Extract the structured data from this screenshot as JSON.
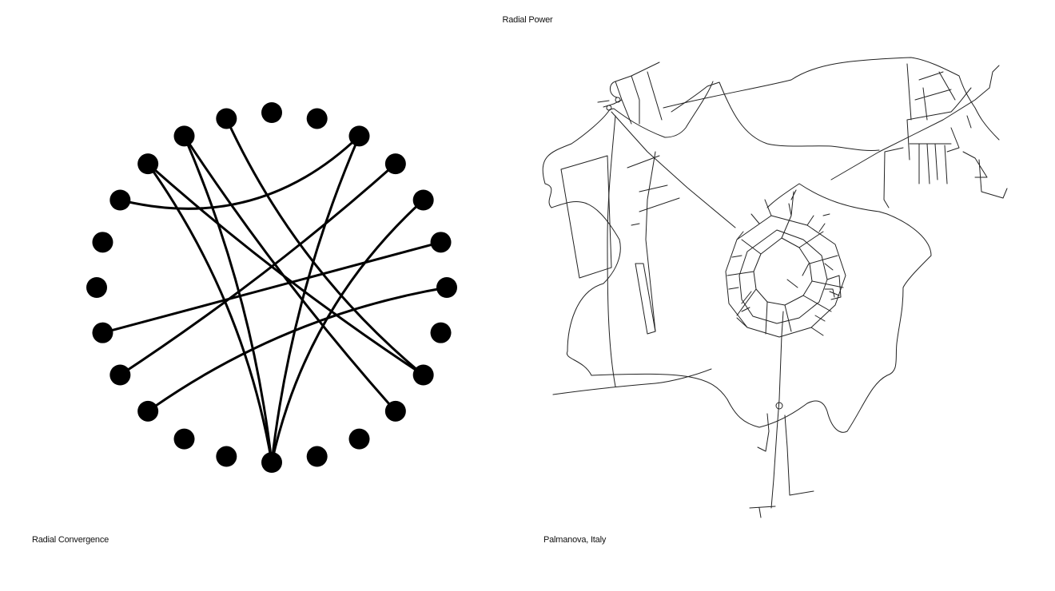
{
  "title": "Radial Power",
  "left_caption": "Radial Convergence",
  "right_caption": "Palmanova, Italy",
  "colors": {
    "ink": "#000000",
    "background": "#ffffff"
  }
}
